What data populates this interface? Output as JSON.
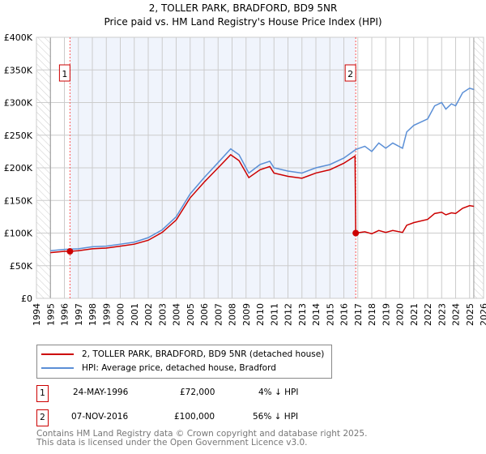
{
  "chart_data": {
    "type": "line",
    "title": "2, TOLLER PARK, BRADFORD, BD9 5NR",
    "subtitle": "Price paid vs. HM Land Registry's House Price Index (HPI)",
    "xlim": [
      1994,
      2026
    ],
    "ylim": [
      0,
      400000
    ],
    "x_ticks": [
      "1994",
      "1995",
      "1996",
      "1997",
      "1998",
      "1999",
      "2000",
      "2001",
      "2002",
      "2003",
      "2004",
      "2005",
      "2006",
      "2007",
      "2008",
      "2009",
      "2010",
      "2011",
      "2012",
      "2013",
      "2014",
      "2015",
      "2016",
      "2017",
      "2018",
      "2019",
      "2020",
      "2021",
      "2022",
      "2023",
      "2024",
      "2025",
      "2026"
    ],
    "y_ticks": [
      {
        "v": 0,
        "label": "£0"
      },
      {
        "v": 50000,
        "label": "£50K"
      },
      {
        "v": 100000,
        "label": "£100K"
      },
      {
        "v": 150000,
        "label": "£150K"
      },
      {
        "v": 200000,
        "label": "£200K"
      },
      {
        "v": 250000,
        "label": "£250K"
      },
      {
        "v": 300000,
        "label": "£300K"
      },
      {
        "v": 350000,
        "label": "£350K"
      },
      {
        "v": 400000,
        "label": "£400K"
      }
    ],
    "grid": true,
    "data_range": [
      1995,
      2025.3
    ],
    "series": [
      {
        "name": "2, TOLLER PARK, BRADFORD, BD9 5NR (detached house)",
        "color": "#cc0000",
        "x": [
          1995,
          1996,
          1996.4,
          1997,
          1998,
          1999,
          2000,
          2001,
          2002,
          2003,
          2004,
          2005,
          2006,
          2007,
          2007.9,
          2008.5,
          2009.2,
          2010,
          2010.7,
          2011,
          2012,
          2013,
          2014,
          2015,
          2016,
          2016.8,
          2016.85,
          2017.5,
          2018,
          2018.5,
          2019,
          2019.5,
          2020.2,
          2020.5,
          2021,
          2022,
          2022.5,
          2023,
          2023.3,
          2023.7,
          2024,
          2024.5,
          2025,
          2025.3
        ],
        "y": [
          70000,
          72000,
          72000,
          73000,
          76000,
          77000,
          80000,
          83000,
          89000,
          101000,
          120000,
          154000,
          178000,
          200000,
          220000,
          211000,
          185000,
          197000,
          202000,
          192000,
          187000,
          184000,
          192000,
          197000,
          207000,
          218000,
          100000,
          102000,
          99000,
          104000,
          101000,
          104000,
          101000,
          112000,
          116000,
          121000,
          130000,
          132000,
          128000,
          131000,
          130000,
          138000,
          142000,
          141000
        ]
      },
      {
        "name": "HPI: Average price, detached house, Bradford",
        "color": "#5b8fd6",
        "x": [
          1995,
          1996,
          1997,
          1998,
          1999,
          2000,
          2001,
          2002,
          2003,
          2004,
          2005,
          2006,
          2007,
          2007.9,
          2008.5,
          2009.2,
          2010,
          2010.7,
          2011,
          2012,
          2013,
          2014,
          2015,
          2016,
          2016.85,
          2017.5,
          2018,
          2018.5,
          2019,
          2019.5,
          2020.2,
          2020.5,
          2021,
          2022,
          2022.5,
          2023,
          2023.3,
          2023.7,
          2024,
          2024.5,
          2025,
          2025.3
        ],
        "y": [
          73000,
          75000,
          76000,
          79000,
          80000,
          83000,
          86000,
          93000,
          105000,
          125000,
          160000,
          185000,
          208000,
          229000,
          220000,
          192000,
          205000,
          210000,
          200000,
          195000,
          192000,
          200000,
          205000,
          215000,
          228000,
          233000,
          225000,
          238000,
          230000,
          238000,
          230000,
          255000,
          265000,
          275000,
          295000,
          300000,
          290000,
          298000,
          295000,
          315000,
          322000,
          320000
        ]
      }
    ],
    "sales": [
      {
        "label": "1",
        "x": 1996.4,
        "y": 72000
      },
      {
        "label": "2",
        "x": 2016.85,
        "y": 100000
      }
    ],
    "legend": "below"
  },
  "transactions": [
    {
      "num": "1",
      "date": "24-MAY-1996",
      "price": "£72,000",
      "hpi": "4% ↓ HPI"
    },
    {
      "num": "2",
      "date": "07-NOV-2016",
      "price": "£100,000",
      "hpi": "56% ↓ HPI"
    }
  ],
  "footer": {
    "line1": "Contains HM Land Registry data © Crown copyright and database right 2025.",
    "line2": "This data is licensed under the Open Government Licence v3.0."
  }
}
